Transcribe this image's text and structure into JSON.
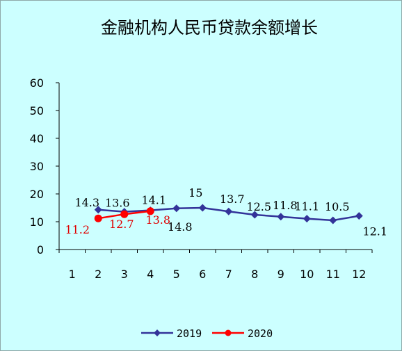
{
  "chart_data": {
    "type": "line",
    "title": "金融机构人民币贷款余额增长",
    "x": [
      1,
      2,
      3,
      4,
      5,
      6,
      7,
      8,
      9,
      10,
      11,
      12
    ],
    "ylim": [
      0,
      60
    ],
    "yticks": [
      0,
      10,
      20,
      30,
      40,
      50,
      60
    ],
    "legend_position": "bottom",
    "series": [
      {
        "name": "2019",
        "color": "#333399",
        "marker": "diamond",
        "x": [
          2,
          3,
          4,
          5,
          6,
          7,
          8,
          9,
          10,
          11,
          12
        ],
        "values": [
          14.3,
          13.6,
          14.1,
          14.8,
          15,
          13.7,
          12.5,
          11.8,
          11.1,
          10.5,
          12.1
        ],
        "labels": [
          "14.3",
          "13.6",
          "14.1",
          "14.8",
          "15",
          "13.7",
          "12.5",
          "11.8",
          "11.1",
          "10.5",
          "12.1"
        ]
      },
      {
        "name": "2020",
        "color": "#ff0000",
        "marker": "circle",
        "x": [
          2,
          3,
          4
        ],
        "values": [
          11.2,
          12.7,
          13.8
        ],
        "labels": [
          "11.2",
          "12.7",
          "13.8"
        ]
      }
    ]
  }
}
